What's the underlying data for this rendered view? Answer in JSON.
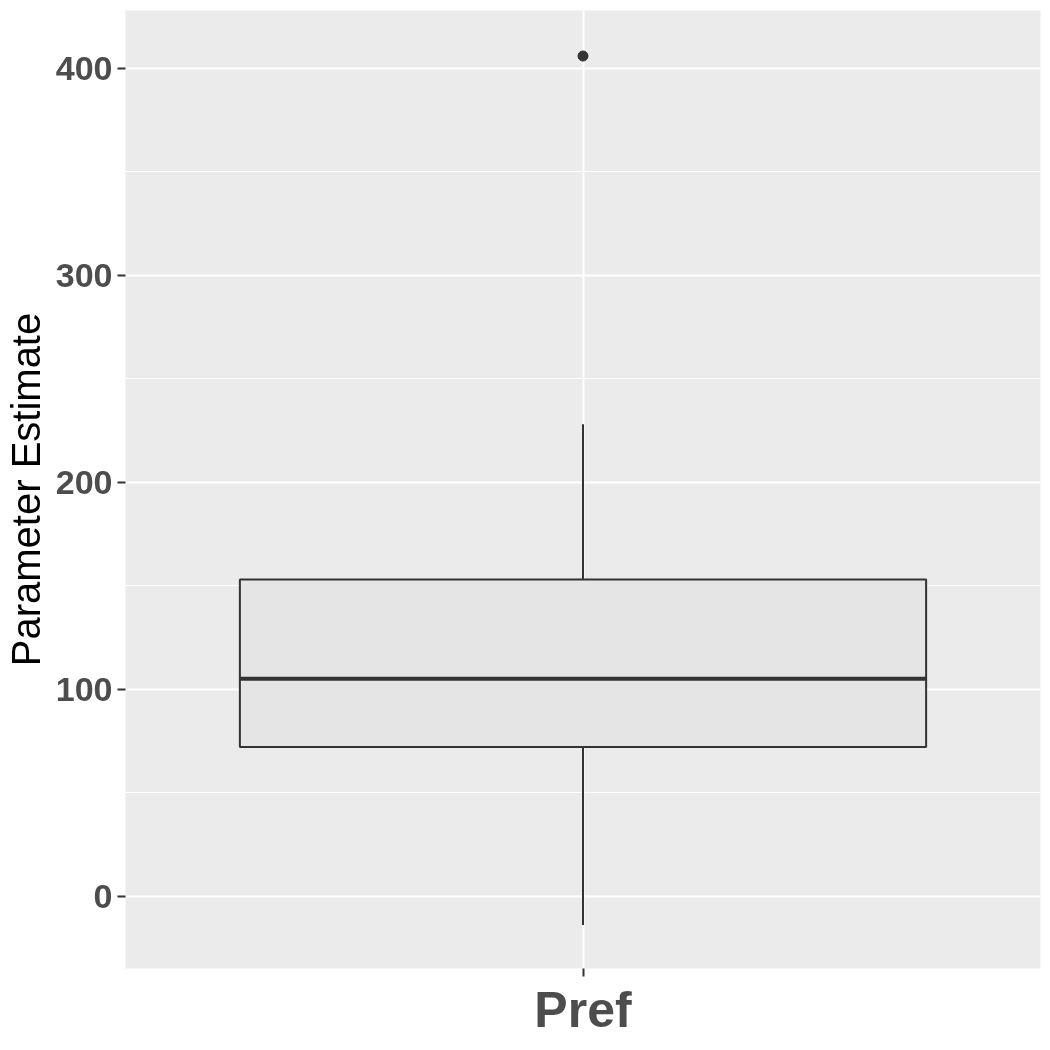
{
  "chart_data": {
    "type": "box",
    "ylabel": "Parameter Estimate",
    "categories": [
      "Pref"
    ],
    "boxes": [
      {
        "low": -14,
        "q1": 72,
        "median": 105,
        "q3": 153,
        "high": 228,
        "outliers": [
          406
        ]
      }
    ],
    "ylim": [
      -35,
      428
    ],
    "yticks": [
      0,
      100,
      200,
      300,
      400
    ],
    "grid": true
  }
}
